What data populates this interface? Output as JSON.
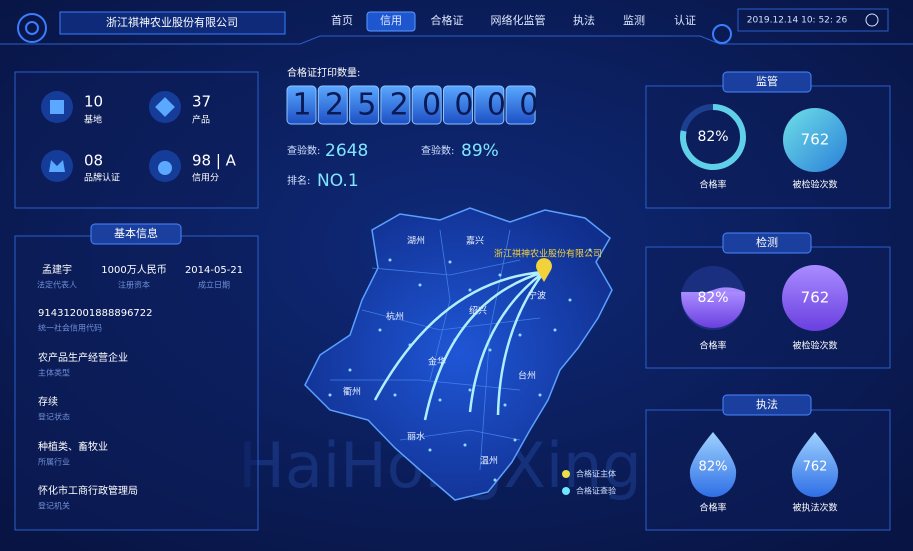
{
  "header": {
    "company": "浙江祺神农业股份有限公司",
    "nav": [
      "首页",
      "信用",
      "合格证",
      "网络化监管",
      "执法",
      "监测",
      "认证"
    ],
    "datetime": "2019.12.14  10: 52: 26"
  },
  "stats": [
    {
      "value": "10",
      "label": "基地"
    },
    {
      "value": "37",
      "label": "产品"
    },
    {
      "value": "08",
      "label": "品牌认证"
    },
    {
      "value": "98 | A",
      "label": "信用分"
    }
  ],
  "basic_info": {
    "title": "基本信息",
    "top_row": [
      {
        "value": "孟建宇",
        "label": "法定代表人"
      },
      {
        "value": "1000万人民币",
        "label": "注册资本"
      },
      {
        "value": "2014-05-21",
        "label": "成立日期"
      }
    ],
    "fields": [
      {
        "value": "914312001888896722",
        "label": "统一社会信用代码"
      },
      {
        "value": "农产品生产经营企业",
        "label": "主体类型"
      },
      {
        "value": "存续",
        "label": "登记状态"
      },
      {
        "value": "种植类、畜牧业",
        "label": "所属行业"
      },
      {
        "value": "怀化市工商行政管理局",
        "label": "登记机关"
      }
    ]
  },
  "print": {
    "label": "合格证打印数量:",
    "count": "12520000",
    "check_label": "查验数:",
    "check_count": "2648",
    "rate_label": "查验数:",
    "rate": "89%",
    "rank_label": "排名:",
    "rank": "NO.1"
  },
  "map": {
    "company": "浙江祺神农业股份有限公司",
    "cities": [
      "湖州",
      "嘉兴",
      "杭州",
      "绍兴",
      "宁波",
      "金华",
      "台州",
      "衢州",
      "丽水",
      "温州"
    ],
    "legend": [
      "合格证主体",
      "合格证查验"
    ]
  },
  "watermark": "HaiHongXing",
  "panels": [
    {
      "title": "监管",
      "items": [
        {
          "value": "82%",
          "label": "合格率"
        },
        {
          "value": "762",
          "label": "被检验次数"
        }
      ]
    },
    {
      "title": "检测",
      "items": [
        {
          "value": "82%",
          "label": "合格率"
        },
        {
          "value": "762",
          "label": "被检验次数"
        }
      ]
    },
    {
      "title": "执法",
      "items": [
        {
          "value": "82%",
          "label": "合格率"
        },
        {
          "value": "762",
          "label": "被执法次数"
        }
      ]
    }
  ]
}
